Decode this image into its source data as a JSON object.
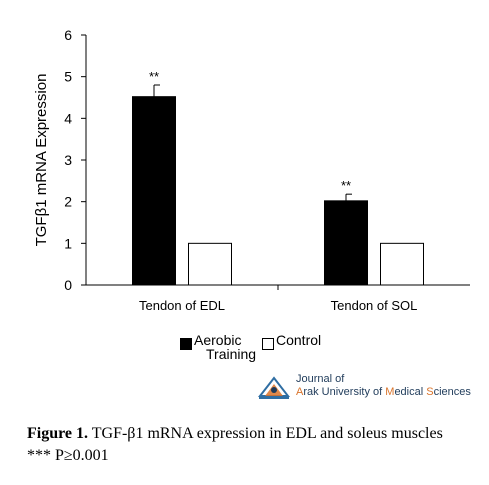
{
  "chart_data": {
    "type": "bar",
    "categories": [
      "Tendon of EDL",
      "Tendon of SOL"
    ],
    "series": [
      {
        "name": "Aerobic Training",
        "values": [
          4.52,
          2.02
        ],
        "errors": [
          0.28,
          0.16
        ],
        "color": "#000000",
        "annotations": [
          "**",
          "**"
        ]
      },
      {
        "name": "Control",
        "values": [
          1.0,
          1.0
        ],
        "color": "#ffffff"
      }
    ],
    "ylabel": "TGFβ1 mRNA Expression",
    "xlabel": "",
    "ylim": [
      0,
      6
    ],
    "yticks": [
      0,
      1,
      2,
      3,
      4,
      5,
      6
    ],
    "legend_position": "bottom",
    "grid": false
  },
  "legend": {
    "aerobic_line1": "Aerobic",
    "aerobic_line2": "Training",
    "control": "Control"
  },
  "logo": {
    "line1": "Journal of",
    "line2_a": "A",
    "line2_b": "rak University of ",
    "line2_c": "M",
    "line2_d": "edical ",
    "line2_e": "S",
    "line2_f": "ciences"
  },
  "caption": {
    "label": "Figure 1.",
    "text": " TGF-β1 mRNA expression in EDL and soleus muscles",
    "note": "*** P≥0.001"
  }
}
